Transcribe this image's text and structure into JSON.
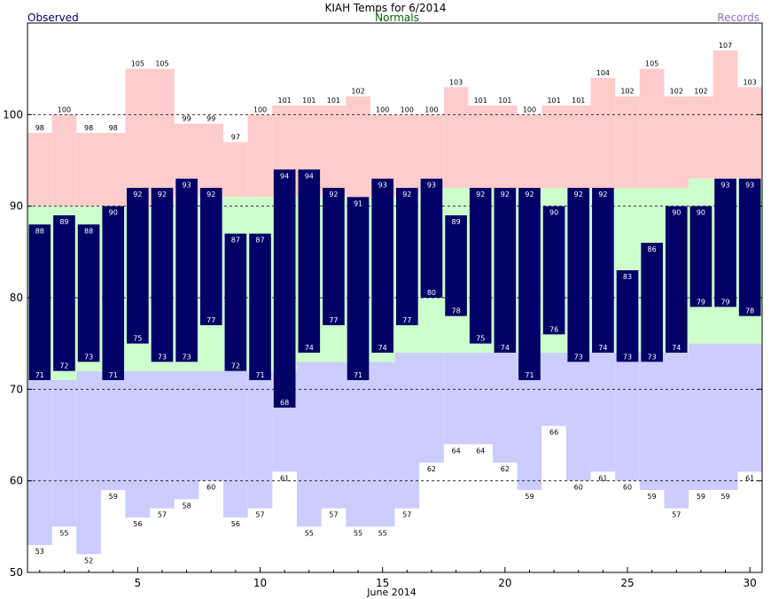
{
  "header": {
    "title": "KIAH Temps for 6/2014",
    "observed_label": "Observed",
    "normals_label": "Normals",
    "records_label": "Records"
  },
  "colors": {
    "observed": "#000066",
    "observed_text": "#ffffff",
    "normals": "#ccffcc",
    "records_high": "#ffcccc",
    "records_low": "#ccccff",
    "normals_text": "#006600",
    "records_text": "#9966cc",
    "title_text": "#000000"
  },
  "chart_data": {
    "type": "bar",
    "xlabel": "June 2014",
    "ylabel": "",
    "xlim": [
      0.5,
      30.5
    ],
    "ylim": [
      50,
      110
    ],
    "x_ticks": [
      5,
      10,
      15,
      20,
      25,
      30
    ],
    "y_ticks": [
      50,
      60,
      70,
      80,
      90,
      100
    ],
    "gridlines": [
      60,
      70,
      80,
      90,
      100
    ],
    "grid": "dashed horizontal",
    "days": [
      1,
      2,
      3,
      4,
      5,
      6,
      7,
      8,
      9,
      10,
      11,
      12,
      13,
      14,
      15,
      16,
      17,
      18,
      19,
      20,
      21,
      22,
      23,
      24,
      25,
      26,
      27,
      28,
      29,
      30
    ],
    "series": [
      {
        "name": "Observed",
        "key": "observed_high",
        "values": [
          88,
          89,
          88,
          90,
          92,
          92,
          93,
          92,
          87,
          87,
          94,
          94,
          92,
          91,
          93,
          92,
          93,
          89,
          92,
          92,
          92,
          90,
          92,
          92,
          83,
          86,
          90,
          90,
          93,
          93
        ]
      },
      {
        "name": "Observed",
        "key": "observed_low",
        "values": [
          71,
          72,
          73,
          71,
          75,
          73,
          73,
          77,
          72,
          71,
          68,
          74,
          77,
          71,
          74,
          77,
          80,
          78,
          75,
          74,
          71,
          76,
          73,
          74,
          73,
          73,
          74,
          79,
          79,
          78
        ]
      },
      {
        "name": "Normals",
        "key": "normal_high",
        "values": [
          90,
          90,
          90,
          90,
          90,
          90,
          91,
          91,
          91,
          91,
          91,
          91,
          91,
          91,
          91,
          91,
          92,
          92,
          92,
          92,
          92,
          92,
          92,
          92,
          92,
          92,
          92,
          93,
          93,
          93
        ]
      },
      {
        "name": "Normals",
        "key": "normal_low",
        "values": [
          71,
          71,
          72,
          72,
          72,
          72,
          72,
          72,
          72,
          72,
          72,
          73,
          73,
          73,
          73,
          74,
          74,
          74,
          74,
          74,
          74,
          74,
          74,
          74,
          74,
          74,
          74,
          75,
          75,
          75
        ]
      },
      {
        "name": "Records",
        "key": "record_high",
        "values": [
          98,
          100,
          98,
          98,
          105,
          105,
          99,
          99,
          97,
          100,
          101,
          101,
          101,
          102,
          100,
          100,
          100,
          103,
          101,
          101,
          100,
          101,
          101,
          104,
          102,
          105,
          102,
          102,
          107,
          103
        ]
      },
      {
        "name": "Records",
        "key": "record_low",
        "values": [
          53,
          55,
          52,
          59,
          56,
          57,
          58,
          60,
          56,
          57,
          61,
          55,
          57,
          55,
          55,
          57,
          62,
          64,
          64,
          62,
          59,
          66,
          60,
          61,
          60,
          59,
          57,
          59,
          59,
          61
        ]
      }
    ]
  }
}
